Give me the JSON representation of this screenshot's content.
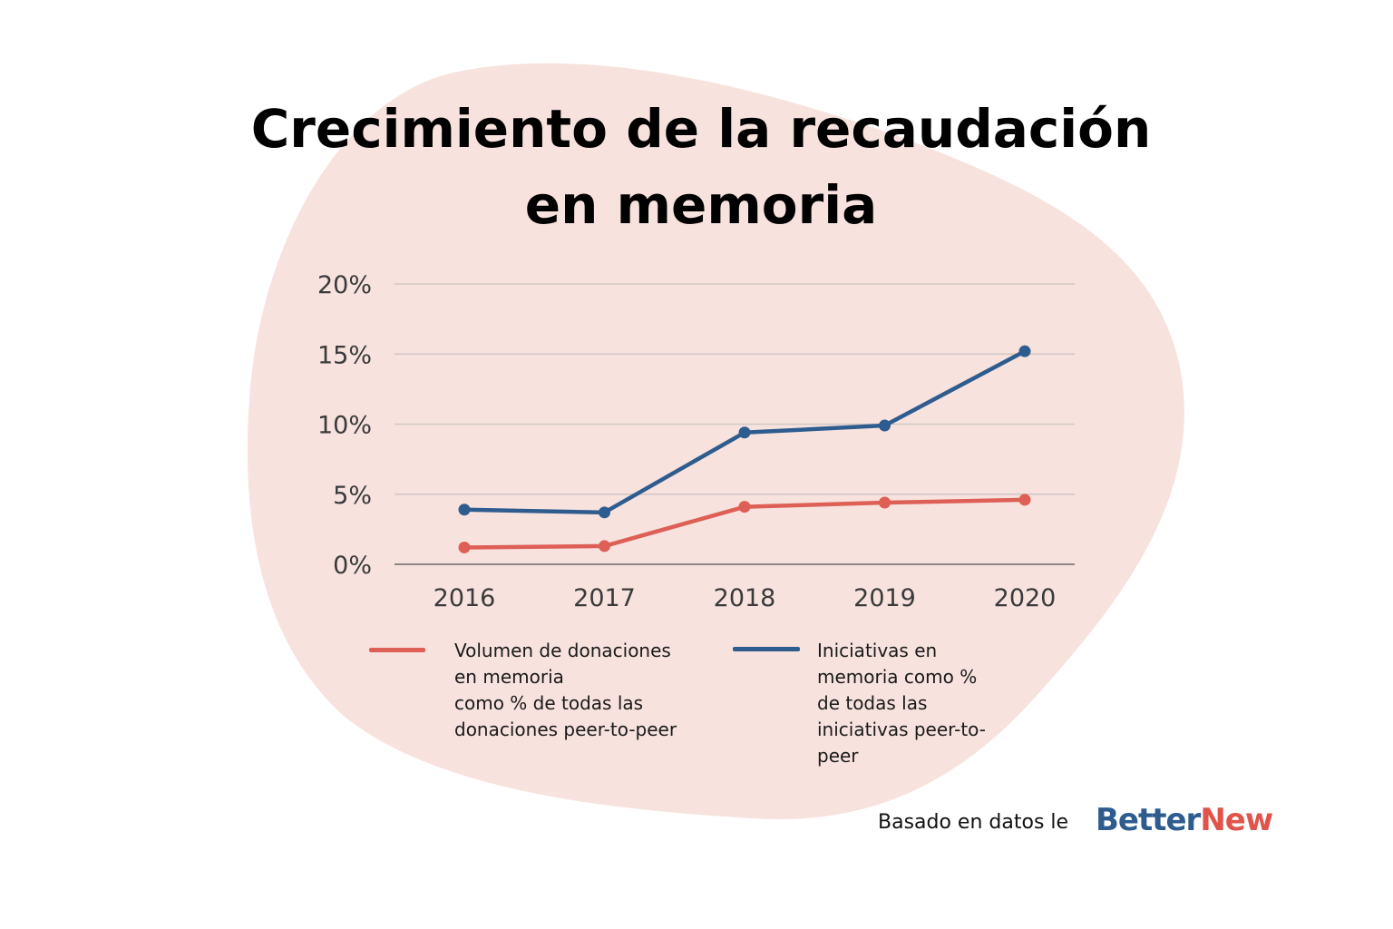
{
  "title": {
    "line1": "Crecimiento de la recaudación",
    "line2": "en memoria"
  },
  "colors": {
    "background_blob": "#f7e2de",
    "series_red": "#de5f55",
    "series_blue": "#2e5c8f",
    "grid": "#cfc7c4",
    "logo_blue": "#2e5c8f",
    "logo_red": "#e0544b"
  },
  "chart_data": {
    "type": "line",
    "title": "Crecimiento de la recaudación en memoria",
    "xlabel": "",
    "ylabel": "",
    "categories": [
      "2016",
      "2017",
      "2018",
      "2019",
      "2020"
    ],
    "y_ticks": [
      0,
      5,
      10,
      15,
      20
    ],
    "y_tick_labels": [
      "0%",
      "5%",
      "10%",
      "15%",
      "20%"
    ],
    "ylim": [
      0,
      20
    ],
    "grid": true,
    "series": [
      {
        "name": "Volumen de donaciones en memoria como % de todas las donaciones peer-to-peer",
        "color": "#de5f55",
        "values": [
          1.2,
          1.3,
          4.1,
          4.4,
          4.6
        ]
      },
      {
        "name": "Iniciativas en memoria como % de todas las iniciativas peer-to-peer",
        "color": "#2e5c8f",
        "values": [
          3.9,
          3.7,
          9.4,
          9.9,
          15.2
        ]
      }
    ]
  },
  "legend": {
    "red": [
      "Volumen de donaciones",
      "en memoria",
      "como % de todas las",
      "donaciones peer-to-peer"
    ],
    "blue": [
      "Iniciativas en",
      "memoria como %",
      "de todas las",
      "iniciativas peer-to-",
      "peer"
    ]
  },
  "source": {
    "text": "Basado en datos le",
    "logo_part1": "Better",
    "logo_part2": "New"
  }
}
